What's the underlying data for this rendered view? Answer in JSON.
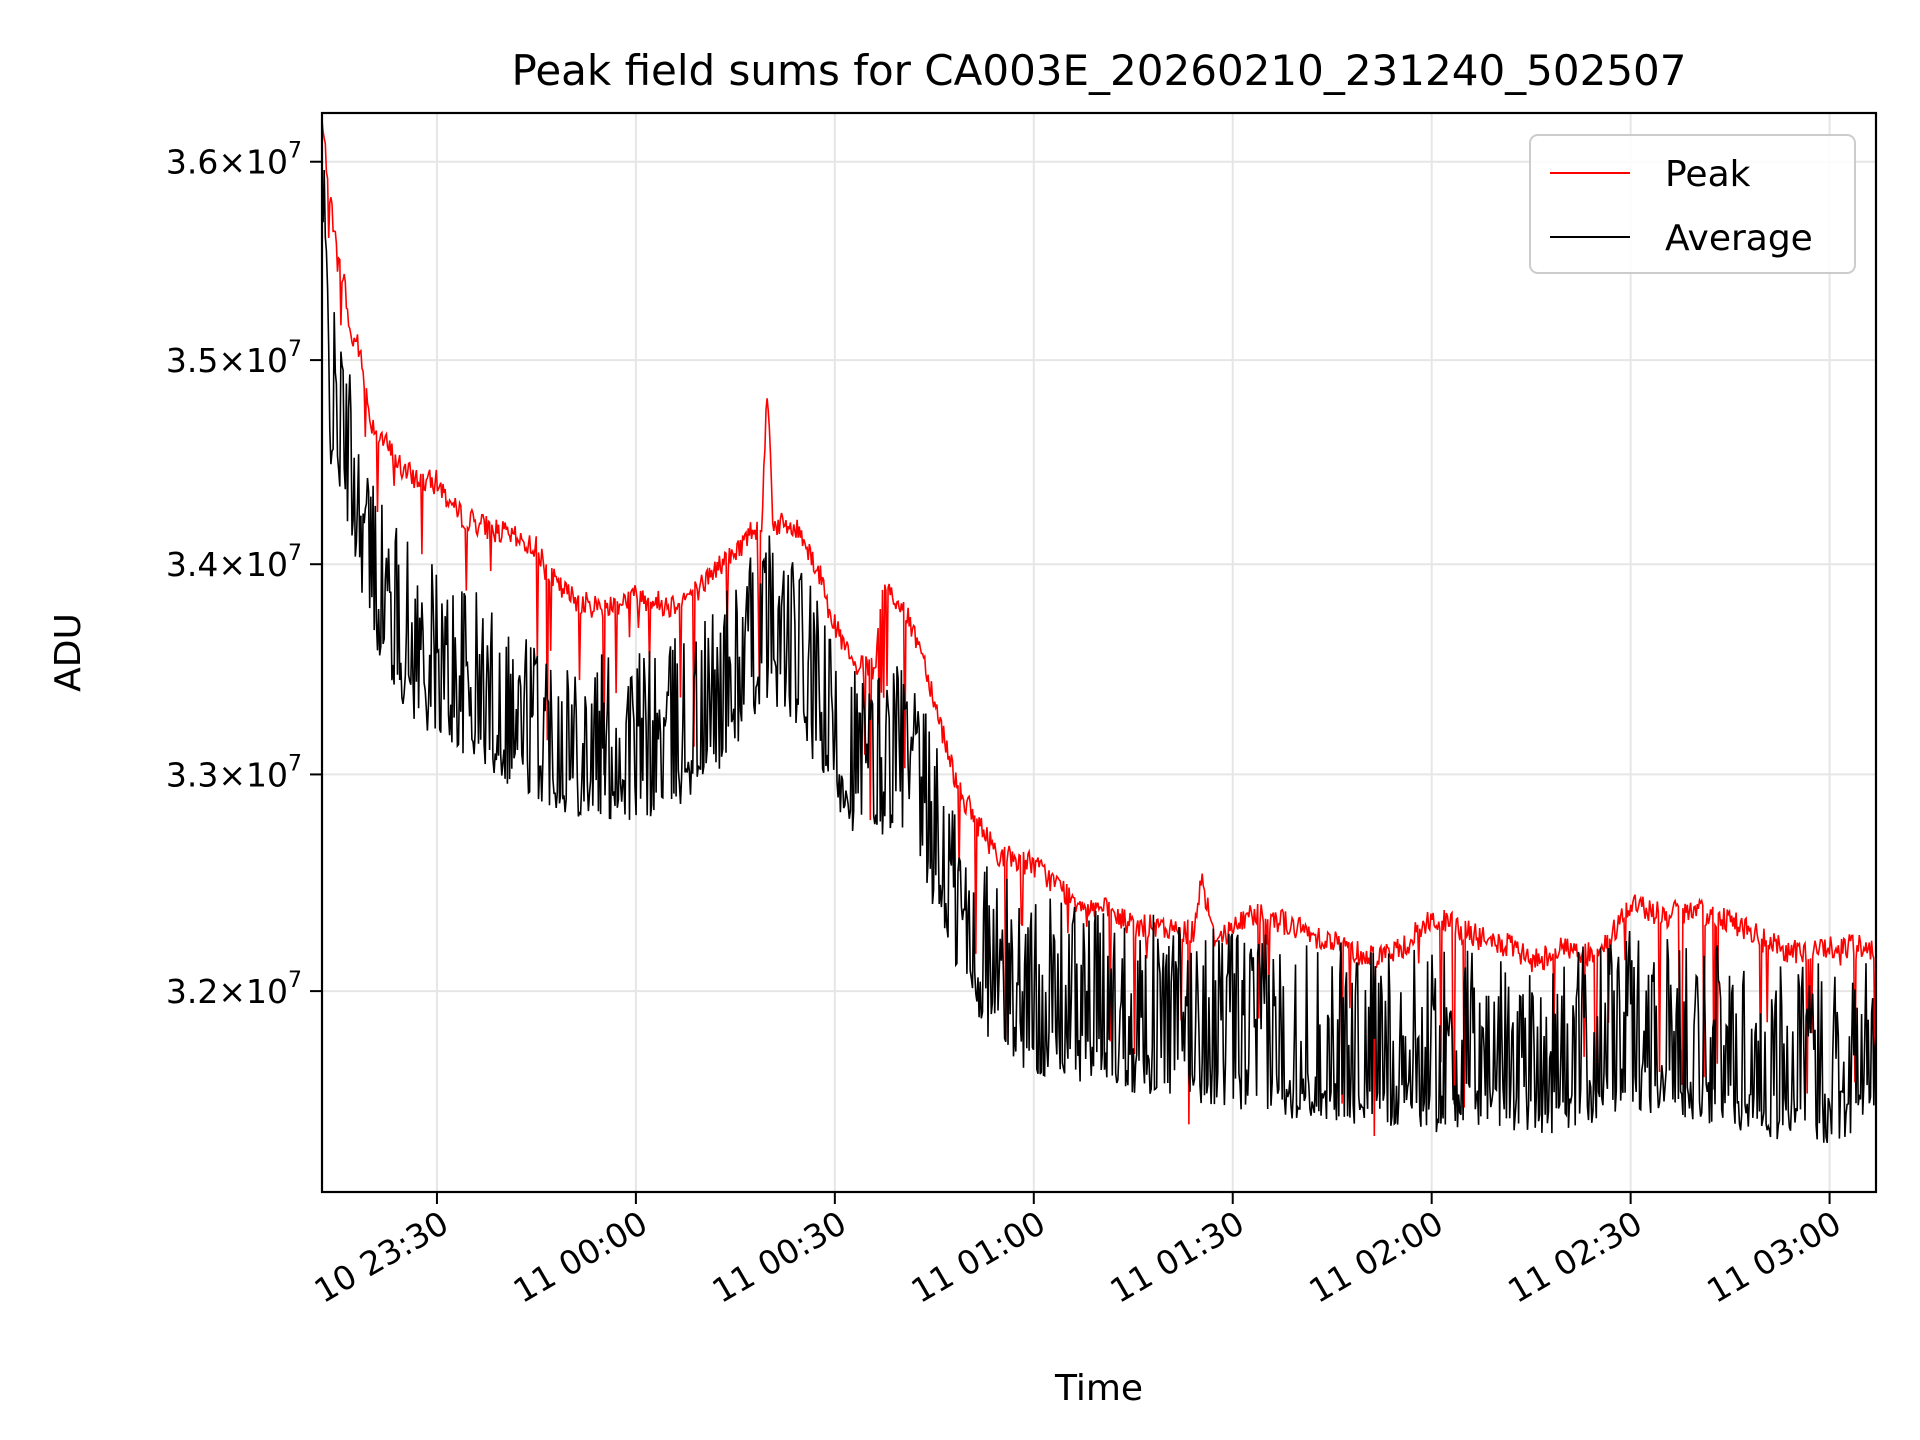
{
  "chart_data": {
    "type": "line",
    "title": "Peak field sums for CA003E_20260210_231240_502507",
    "xlabel": "Time",
    "ylabel": "ADU",
    "ylog": true,
    "grid": true,
    "legend_position": "top-right",
    "xlim": [
      "2026-02-10 23:12:40",
      "2026-02-11 03:07:00"
    ],
    "ylim": [
      31100000,
      36250000
    ],
    "x_ticks": [
      {
        "value": "2026-02-10 23:30:00",
        "label": "10 23:30"
      },
      {
        "value": "2026-02-11 00:00:00",
        "label": "11 00:00"
      },
      {
        "value": "2026-02-11 00:30:00",
        "label": "11 00:30"
      },
      {
        "value": "2026-02-11 01:00:00",
        "label": "11 01:00"
      },
      {
        "value": "2026-02-11 01:30:00",
        "label": "11 01:30"
      },
      {
        "value": "2026-02-11 02:00:00",
        "label": "11 02:00"
      },
      {
        "value": "2026-02-11 02:30:00",
        "label": "11 02:30"
      },
      {
        "value": "2026-02-11 03:00:00",
        "label": "11 03:00"
      }
    ],
    "y_ticks": [
      {
        "value": 32000000,
        "mantissa": "3.2",
        "exponent": "7"
      },
      {
        "value": 33000000,
        "mantissa": "3.3",
        "exponent": "7"
      },
      {
        "value": 34000000,
        "mantissa": "3.4",
        "exponent": "7"
      },
      {
        "value": 35000000,
        "mantissa": "3.5",
        "exponent": "7"
      },
      {
        "value": 36000000,
        "mantissa": "3.6",
        "exponent": "7"
      }
    ],
    "series": [
      {
        "name": "Peak",
        "color": "#ff0000",
        "points": [
          [
            "2026-02-10 23:12:40",
            36200000
          ],
          [
            "2026-02-10 23:14:00",
            35800000
          ],
          [
            "2026-02-10 23:15:00",
            35500000
          ],
          [
            "2026-02-10 23:16:00",
            35400000
          ],
          [
            "2026-02-10 23:17:00",
            35100000
          ],
          [
            "2026-02-10 23:18:00",
            35100000
          ],
          [
            "2026-02-10 23:20:00",
            34700000
          ],
          [
            "2026-02-10 23:22:00",
            34600000
          ],
          [
            "2026-02-10 23:25:00",
            34450000
          ],
          [
            "2026-02-10 23:28:00",
            34400000
          ],
          [
            "2026-02-10 23:30:00",
            34400000
          ],
          [
            "2026-02-10 23:33:00",
            34250000
          ],
          [
            "2026-02-10 23:36:00",
            34200000
          ],
          [
            "2026-02-10 23:40:00",
            34150000
          ],
          [
            "2026-02-10 23:45:00",
            34080000
          ],
          [
            "2026-02-10 23:48:00",
            33900000
          ],
          [
            "2026-02-10 23:50:00",
            33850000
          ],
          [
            "2026-02-10 23:53:00",
            33800000
          ],
          [
            "2026-02-10 23:56:00",
            33800000
          ],
          [
            "2026-02-11 00:00:00",
            33850000
          ],
          [
            "2026-02-11 00:05:00",
            33800000
          ],
          [
            "2026-02-11 00:08:00",
            33850000
          ],
          [
            "2026-02-11 00:10:00",
            33900000
          ],
          [
            "2026-02-11 00:12:00",
            33980000
          ],
          [
            "2026-02-11 00:15:00",
            34050000
          ],
          [
            "2026-02-11 00:17:00",
            34150000
          ],
          [
            "2026-02-11 00:19:00",
            34200000
          ],
          [
            "2026-02-11 00:19:50",
            34900000
          ],
          [
            "2026-02-11 00:20:40",
            34200000
          ],
          [
            "2026-02-11 00:23:00",
            34180000
          ],
          [
            "2026-02-11 00:25:00",
            34150000
          ],
          [
            "2026-02-11 00:27:00",
            34000000
          ],
          [
            "2026-02-11 00:29:00",
            33850000
          ],
          [
            "2026-02-11 00:30:00",
            33700000
          ],
          [
            "2026-02-11 00:33:00",
            33500000
          ],
          [
            "2026-02-11 00:36:00",
            33500000
          ],
          [
            "2026-02-11 00:37:30",
            33900000
          ],
          [
            "2026-02-11 00:40:00",
            33800000
          ],
          [
            "2026-02-11 00:43:00",
            33600000
          ],
          [
            "2026-02-11 00:45:00",
            33350000
          ],
          [
            "2026-02-11 00:48:00",
            33000000
          ],
          [
            "2026-02-11 00:50:00",
            32850000
          ],
          [
            "2026-02-11 00:53:00",
            32700000
          ],
          [
            "2026-02-11 00:55:00",
            32620000
          ],
          [
            "2026-02-11 00:58:00",
            32600000
          ],
          [
            "2026-02-11 01:00:00",
            32580000
          ],
          [
            "2026-02-11 01:03:00",
            32500000
          ],
          [
            "2026-02-11 01:06:00",
            32420000
          ],
          [
            "2026-02-11 01:10:00",
            32380000
          ],
          [
            "2026-02-11 01:15:00",
            32300000
          ],
          [
            "2026-02-11 01:20:00",
            32280000
          ],
          [
            "2026-02-11 01:24:00",
            32270000
          ],
          [
            "2026-02-11 01:25:20",
            32530000
          ],
          [
            "2026-02-11 01:27:00",
            32250000
          ],
          [
            "2026-02-11 01:30:00",
            32280000
          ],
          [
            "2026-02-11 01:33:00",
            32360000
          ],
          [
            "2026-02-11 01:36:00",
            32340000
          ],
          [
            "2026-02-11 01:40:00",
            32280000
          ],
          [
            "2026-02-11 01:45:00",
            32230000
          ],
          [
            "2026-02-11 01:50:00",
            32160000
          ],
          [
            "2026-02-11 01:55:00",
            32180000
          ],
          [
            "2026-02-11 02:00:00",
            32330000
          ],
          [
            "2026-02-11 02:03:00",
            32300000
          ],
          [
            "2026-02-11 02:08:00",
            32230000
          ],
          [
            "2026-02-11 02:12:00",
            32200000
          ],
          [
            "2026-02-11 02:15:00",
            32130000
          ],
          [
            "2026-02-11 02:20:00",
            32200000
          ],
          [
            "2026-02-11 02:25:00",
            32150000
          ],
          [
            "2026-02-11 02:30:00",
            32400000
          ],
          [
            "2026-02-11 02:35:00",
            32350000
          ],
          [
            "2026-02-11 02:40:00",
            32360000
          ],
          [
            "2026-02-11 02:45:00",
            32330000
          ],
          [
            "2026-02-11 02:50:00",
            32230000
          ],
          [
            "2026-02-11 02:55:00",
            32170000
          ],
          [
            "2026-02-11 03:00:00",
            32200000
          ],
          [
            "2026-02-11 03:07:00",
            32200000
          ]
        ]
      },
      {
        "name": "Average",
        "color": "#000000",
        "points": [
          [
            "2026-02-10 23:12:40",
            35600000
          ],
          [
            "2026-02-10 23:14:00",
            34600000
          ],
          [
            "2026-02-10 23:16:00",
            34400000
          ],
          [
            "2026-02-10 23:18:00",
            34100000
          ],
          [
            "2026-02-10 23:20:00",
            33800000
          ],
          [
            "2026-02-10 23:23:00",
            33550000
          ],
          [
            "2026-02-10 23:26:00",
            33400000
          ],
          [
            "2026-02-10 23:30:00",
            33300000
          ],
          [
            "2026-02-10 23:35:00",
            33200000
          ],
          [
            "2026-02-10 23:40:00",
            33100000
          ],
          [
            "2026-02-10 23:45:00",
            33000000
          ],
          [
            "2026-02-10 23:50:00",
            32950000
          ],
          [
            "2026-02-10 23:55:00",
            32900000
          ],
          [
            "2026-02-11 00:00:00",
            32900000
          ],
          [
            "2026-02-11 00:05:00",
            32950000
          ],
          [
            "2026-02-11 00:10:00",
            33050000
          ],
          [
            "2026-02-11 00:15:00",
            33250000
          ],
          [
            "2026-02-11 00:20:00",
            33500000
          ],
          [
            "2026-02-11 00:25:00",
            33300000
          ],
          [
            "2026-02-11 00:30:00",
            32950000
          ],
          [
            "2026-02-11 00:35:00",
            32800000
          ],
          [
            "2026-02-11 00:40:00",
            32900000
          ],
          [
            "2026-02-11 00:45:00",
            32500000
          ],
          [
            "2026-02-11 00:50:00",
            32050000
          ],
          [
            "2026-02-11 00:55:00",
            31850000
          ],
          [
            "2026-02-11 01:00:00",
            31750000
          ],
          [
            "2026-02-11 01:10:00",
            31700000
          ],
          [
            "2026-02-11 01:20:00",
            31650000
          ],
          [
            "2026-02-11 01:30:00",
            31600000
          ],
          [
            "2026-02-11 01:40:00",
            31550000
          ],
          [
            "2026-02-11 01:50:00",
            31520000
          ],
          [
            "2026-02-11 02:00:00",
            31500000
          ],
          [
            "2026-02-11 02:10:00",
            31500000
          ],
          [
            "2026-02-11 02:20:00",
            31480000
          ],
          [
            "2026-02-11 02:30:00",
            31600000
          ],
          [
            "2026-02-11 02:40:00",
            31550000
          ],
          [
            "2026-02-11 02:50:00",
            31450000
          ],
          [
            "2026-02-11 03:00:00",
            31450000
          ],
          [
            "2026-02-11 03:07:00",
            31500000
          ]
        ]
      }
    ]
  }
}
